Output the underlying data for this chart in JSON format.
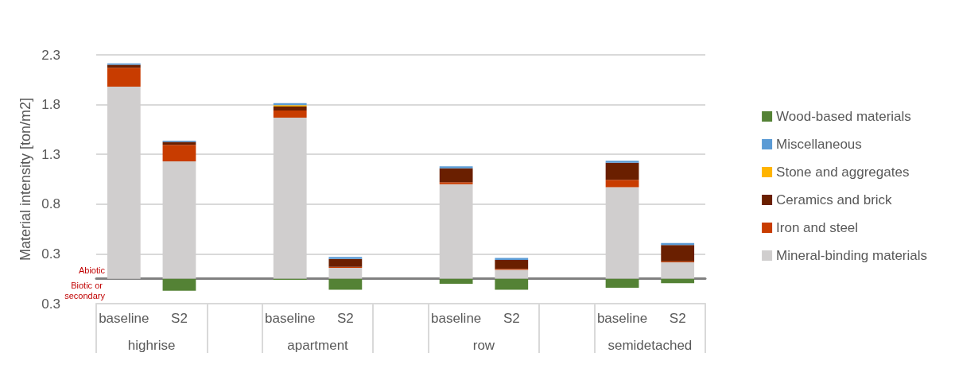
{
  "chart_data": {
    "type": "bar",
    "stacked": true,
    "ylabel": "Material intensity [ton/m2]",
    "categories": [
      "baseline",
      "S2",
      null,
      "baseline",
      "S2",
      null,
      "baseline",
      "S2",
      null,
      "baseline",
      "S2"
    ],
    "series": [
      {
        "name": "Mineral-binding materials",
        "color": "#d0cece",
        "values": [
          1.93,
          1.18,
          null,
          1.62,
          0.11,
          null,
          0.95,
          0.09,
          null,
          0.92,
          0.165
        ]
      },
      {
        "name": "Iron and steel",
        "color": "#c83c00",
        "values": [
          0.19,
          0.165,
          null,
          0.07,
          0.01,
          null,
          0.02,
          0.01,
          null,
          0.075,
          0.01
        ]
      },
      {
        "name": "Ceramics and brick",
        "color": "#6a1f00",
        "values": [
          0.03,
          0.03,
          null,
          0.04,
          0.08,
          null,
          0.14,
          0.09,
          null,
          0.17,
          0.165
        ]
      },
      {
        "name": "Stone and aggregates",
        "color": "#ffb400",
        "values": [
          0,
          0,
          null,
          0.015,
          0,
          null,
          0,
          0,
          null,
          0,
          0
        ]
      },
      {
        "name": "Miscellaneous",
        "color": "#5b9bd5",
        "values": [
          0.015,
          0.013,
          null,
          0.02,
          0.02,
          null,
          0.02,
          0.02,
          null,
          0.02,
          0.02
        ]
      },
      {
        "name": "Wood-based materials",
        "color": "#548235",
        "values": [
          0,
          -0.12,
          null,
          -0.01,
          -0.11,
          null,
          -0.05,
          -0.11,
          null,
          -0.09,
          -0.045
        ]
      }
    ],
    "ylim": [
      -0.25,
      2.25
    ],
    "yticks": [
      {
        "value": -0.25,
        "label": "0.3"
      },
      {
        "value": 0.25,
        "label": "0.3"
      },
      {
        "value": 0.75,
        "label": "0.8"
      },
      {
        "value": 1.25,
        "label": "1.3"
      },
      {
        "value": 1.75,
        "label": "1.8"
      },
      {
        "value": 2.25,
        "label": "2.3"
      }
    ],
    "grid": "y",
    "legend": "right",
    "annotations": [
      "Abiotic",
      "Biotic or secondary",
      "highrise",
      "apartment",
      "row",
      "semidetached"
    ]
  }
}
